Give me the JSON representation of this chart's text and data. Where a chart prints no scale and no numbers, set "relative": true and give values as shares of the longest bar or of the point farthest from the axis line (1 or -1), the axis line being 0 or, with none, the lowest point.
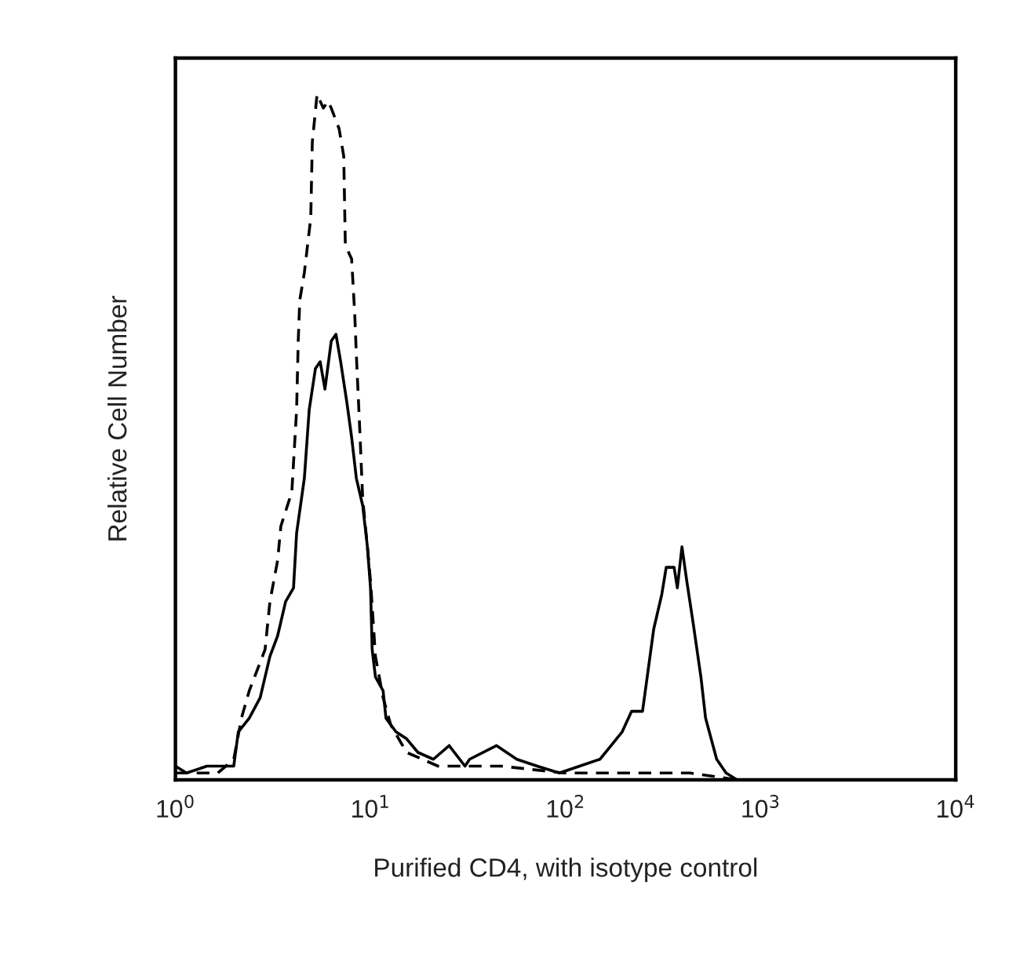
{
  "chart_data": {
    "type": "line",
    "xlabel": "Purified CD4, with isotype control",
    "ylabel": "Relative Cell Number",
    "relative": true,
    "log": "x",
    "grid": false,
    "tick_labels": "x",
    "xlim": [
      1,
      10000
    ],
    "xticks": [
      {
        "value": 1,
        "label": "10$^{0}$"
      },
      {
        "value": 10,
        "label": "10$^{1}$"
      },
      {
        "value": 100,
        "label": "10$^{2}$"
      },
      {
        "value": 1000,
        "label": "10$^{3}$"
      },
      {
        "value": 10000,
        "label": "10$^{4}$"
      }
    ],
    "series": [
      {
        "color": "#000000",
        "line_style": "solid",
        "x": [
          1.0,
          1.14,
          1.45,
          1.75,
          1.99,
          2.1,
          2.39,
          2.72,
          3.05,
          3.34,
          3.67,
          4.03,
          4.18,
          4.58,
          4.85,
          5.22,
          5.52,
          5.84,
          6.29,
          6.65,
          7.03,
          7.57,
          8.0,
          8.46,
          9.12,
          9.64,
          10.0,
          10.2,
          10.6,
          11.6,
          12.0,
          13.5,
          15.3,
          17.5,
          21.0,
          25.3,
          30.5,
          32.2,
          44.2,
          56.2,
          71.6,
          92.9,
          118,
          150,
          171,
          195,
          218,
          248,
          262,
          283,
          311,
          328,
          360,
          374,
          395,
          418,
          450,
          494,
          522,
          595,
          665,
          757
        ],
        "values": [
          0.02,
          0.01,
          0.02,
          0.02,
          0.02,
          0.07,
          0.09,
          0.12,
          0.18,
          0.21,
          0.26,
          0.28,
          0.36,
          0.44,
          0.54,
          0.6,
          0.61,
          0.57,
          0.64,
          0.65,
          0.61,
          0.55,
          0.5,
          0.44,
          0.4,
          0.34,
          0.28,
          0.19,
          0.15,
          0.13,
          0.09,
          0.07,
          0.06,
          0.04,
          0.03,
          0.05,
          0.02,
          0.03,
          0.05,
          0.03,
          0.02,
          0.01,
          0.02,
          0.03,
          0.05,
          0.07,
          0.1,
          0.1,
          0.15,
          0.22,
          0.27,
          0.31,
          0.31,
          0.28,
          0.34,
          0.29,
          0.23,
          0.15,
          0.09,
          0.03,
          0.01,
          0.0
        ]
      },
      {
        "color": "#000000",
        "line_style": "dashed",
        "x": [
          1.0,
          1.65,
          1.99,
          2.18,
          2.39,
          2.88,
          3.05,
          3.34,
          3.47,
          3.95,
          4.18,
          4.26,
          4.34,
          4.58,
          4.94,
          5.03,
          5.32,
          5.73,
          6.06,
          6.29,
          6.9,
          7.29,
          7.43,
          8.0,
          8.3,
          8.46,
          8.78,
          9.12,
          9.64,
          10.0,
          10.6,
          11.6,
          12.7,
          15.3,
          22.2,
          46.7,
          98.2,
          206,
          434,
          757
        ],
        "values": [
          0.01,
          0.01,
          0.03,
          0.09,
          0.13,
          0.19,
          0.26,
          0.32,
          0.37,
          0.42,
          0.54,
          0.64,
          0.7,
          0.74,
          0.82,
          0.93,
          1.0,
          0.98,
          0.99,
          0.98,
          0.95,
          0.91,
          0.78,
          0.76,
          0.68,
          0.62,
          0.52,
          0.41,
          0.34,
          0.29,
          0.18,
          0.12,
          0.08,
          0.04,
          0.02,
          0.02,
          0.01,
          0.01,
          0.01,
          0.0
        ]
      }
    ]
  }
}
